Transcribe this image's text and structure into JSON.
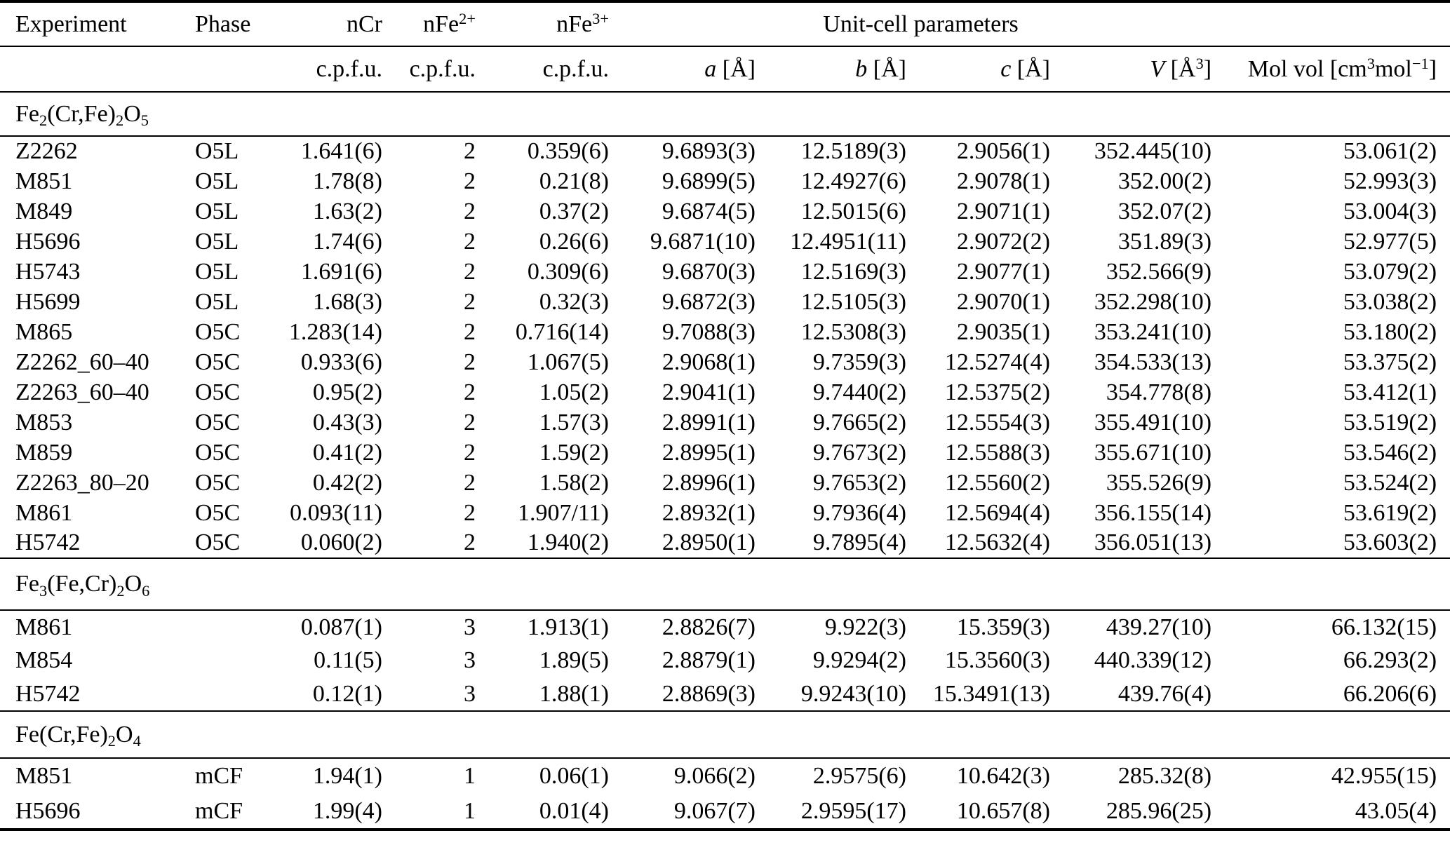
{
  "table": {
    "header": {
      "experiment": "Experiment",
      "phase": "Phase",
      "ncr": "nCr",
      "nfe2": "nFe^2+^",
      "nfe3": "nFe^3+^",
      "unit_cell_group": "Unit-cell parameters",
      "cpfu": "c.p.f.u.",
      "a_sym": "a",
      "a_unit": "[Å]",
      "b_sym": "b",
      "b_unit": "[Å]",
      "c_sym": "c",
      "c_unit": "[Å]",
      "v_sym": "V",
      "v_unit": "[Å^3^]",
      "molvol": "Mol vol [cm^3^mol^−1^]"
    },
    "sections": [
      {
        "title": "Fe~2~(Cr,Fe)~2~O~5~",
        "rows": [
          [
            "Z2262",
            "O5L",
            "1.641(6)",
            "2",
            "0.359(6)",
            "9.6893(3)",
            "12.5189(3)",
            "2.9056(1)",
            "352.445(10)",
            "53.061(2)"
          ],
          [
            "M851",
            "O5L",
            "1.78(8)",
            "2",
            "0.21(8)",
            "9.6899(5)",
            "12.4927(6)",
            "2.9078(1)",
            "352.00(2)",
            "52.993(3)"
          ],
          [
            "M849",
            "O5L",
            "1.63(2)",
            "2",
            "0.37(2)",
            "9.6874(5)",
            "12.5015(6)",
            "2.9071(1)",
            "352.07(2)",
            "53.004(3)"
          ],
          [
            "H5696",
            "O5L",
            "1.74(6)",
            "2",
            "0.26(6)",
            "9.6871(10)",
            "12.4951(11)",
            "2.9072(2)",
            "351.89(3)",
            "52.977(5)"
          ],
          [
            "H5743",
            "O5L",
            "1.691(6)",
            "2",
            "0.309(6)",
            "9.6870(3)",
            "12.5169(3)",
            "2.9077(1)",
            "352.566(9)",
            "53.079(2)"
          ],
          [
            "H5699",
            "O5L",
            "1.68(3)",
            "2",
            "0.32(3)",
            "9.6872(3)",
            "12.5105(3)",
            "2.9070(1)",
            "352.298(10)",
            "53.038(2)"
          ],
          [
            "M865",
            "O5C",
            "1.283(14)",
            "2",
            "0.716(14)",
            "9.7088(3)",
            "12.5308(3)",
            "2.9035(1)",
            "353.241(10)",
            "53.180(2)"
          ],
          [
            "Z2262_60–40",
            "O5C",
            "0.933(6)",
            "2",
            "1.067(5)",
            "2.9068(1)",
            "9.7359(3)",
            "12.5274(4)",
            "354.533(13)",
            "53.375(2)"
          ],
          [
            "Z2263_60–40",
            "O5C",
            "0.95(2)",
            "2",
            "1.05(2)",
            "2.9041(1)",
            "9.7440(2)",
            "12.5375(2)",
            "354.778(8)",
            "53.412(1)"
          ],
          [
            "M853",
            "O5C",
            "0.43(3)",
            "2",
            "1.57(3)",
            "2.8991(1)",
            "9.7665(2)",
            "12.5554(3)",
            "355.491(10)",
            "53.519(2)"
          ],
          [
            "M859",
            "O5C",
            "0.41(2)",
            "2",
            "1.59(2)",
            "2.8995(1)",
            "9.7673(2)",
            "12.5588(3)",
            "355.671(10)",
            "53.546(2)"
          ],
          [
            "Z2263_80–20",
            "O5C",
            "0.42(2)",
            "2",
            "1.58(2)",
            "2.8996(1)",
            "9.7653(2)",
            "12.5560(2)",
            "355.526(9)",
            "53.524(2)"
          ],
          [
            "M861",
            "O5C",
            "0.093(11)",
            "2",
            "1.907/11)",
            "2.8932(1)",
            "9.7936(4)",
            "12.5694(4)",
            "356.155(14)",
            "53.619(2)"
          ],
          [
            "H5742",
            "O5C",
            "0.060(2)",
            "2",
            "1.940(2)",
            "2.8950(1)",
            "9.7895(4)",
            "12.5632(4)",
            "356.051(13)",
            "53.603(2)"
          ]
        ]
      },
      {
        "title": "Fe~3~(Fe,Cr)~2~O~6~",
        "rows": [
          [
            "M861",
            "",
            "0.087(1)",
            "3",
            "1.913(1)",
            "2.8826(7)",
            "9.922(3)",
            "15.359(3)",
            "439.27(10)",
            "66.132(15)"
          ],
          [
            "M854",
            "",
            "0.11(5)",
            "3",
            "1.89(5)",
            "2.8879(1)",
            "9.9294(2)",
            "15.3560(3)",
            "440.339(12)",
            "66.293(2)"
          ],
          [
            "H5742",
            "",
            "0.12(1)",
            "3",
            "1.88(1)",
            "2.8869(3)",
            "9.9243(10)",
            "15.3491(13)",
            "439.76(4)",
            "66.206(6)"
          ]
        ]
      },
      {
        "title": "Fe(Cr,Fe)~2~O~4~",
        "rows": [
          [
            "M851",
            "mCF",
            "1.94(1)",
            "1",
            "0.06(1)",
            "9.066(2)",
            "2.9575(6)",
            "10.642(3)",
            "285.32(8)",
            "42.955(15)"
          ],
          [
            "H5696",
            "mCF",
            "1.99(4)",
            "1",
            "0.01(4)",
            "9.067(7)",
            "2.9595(17)",
            "10.657(8)",
            "285.96(25)",
            "43.05(4)"
          ]
        ]
      }
    ]
  }
}
